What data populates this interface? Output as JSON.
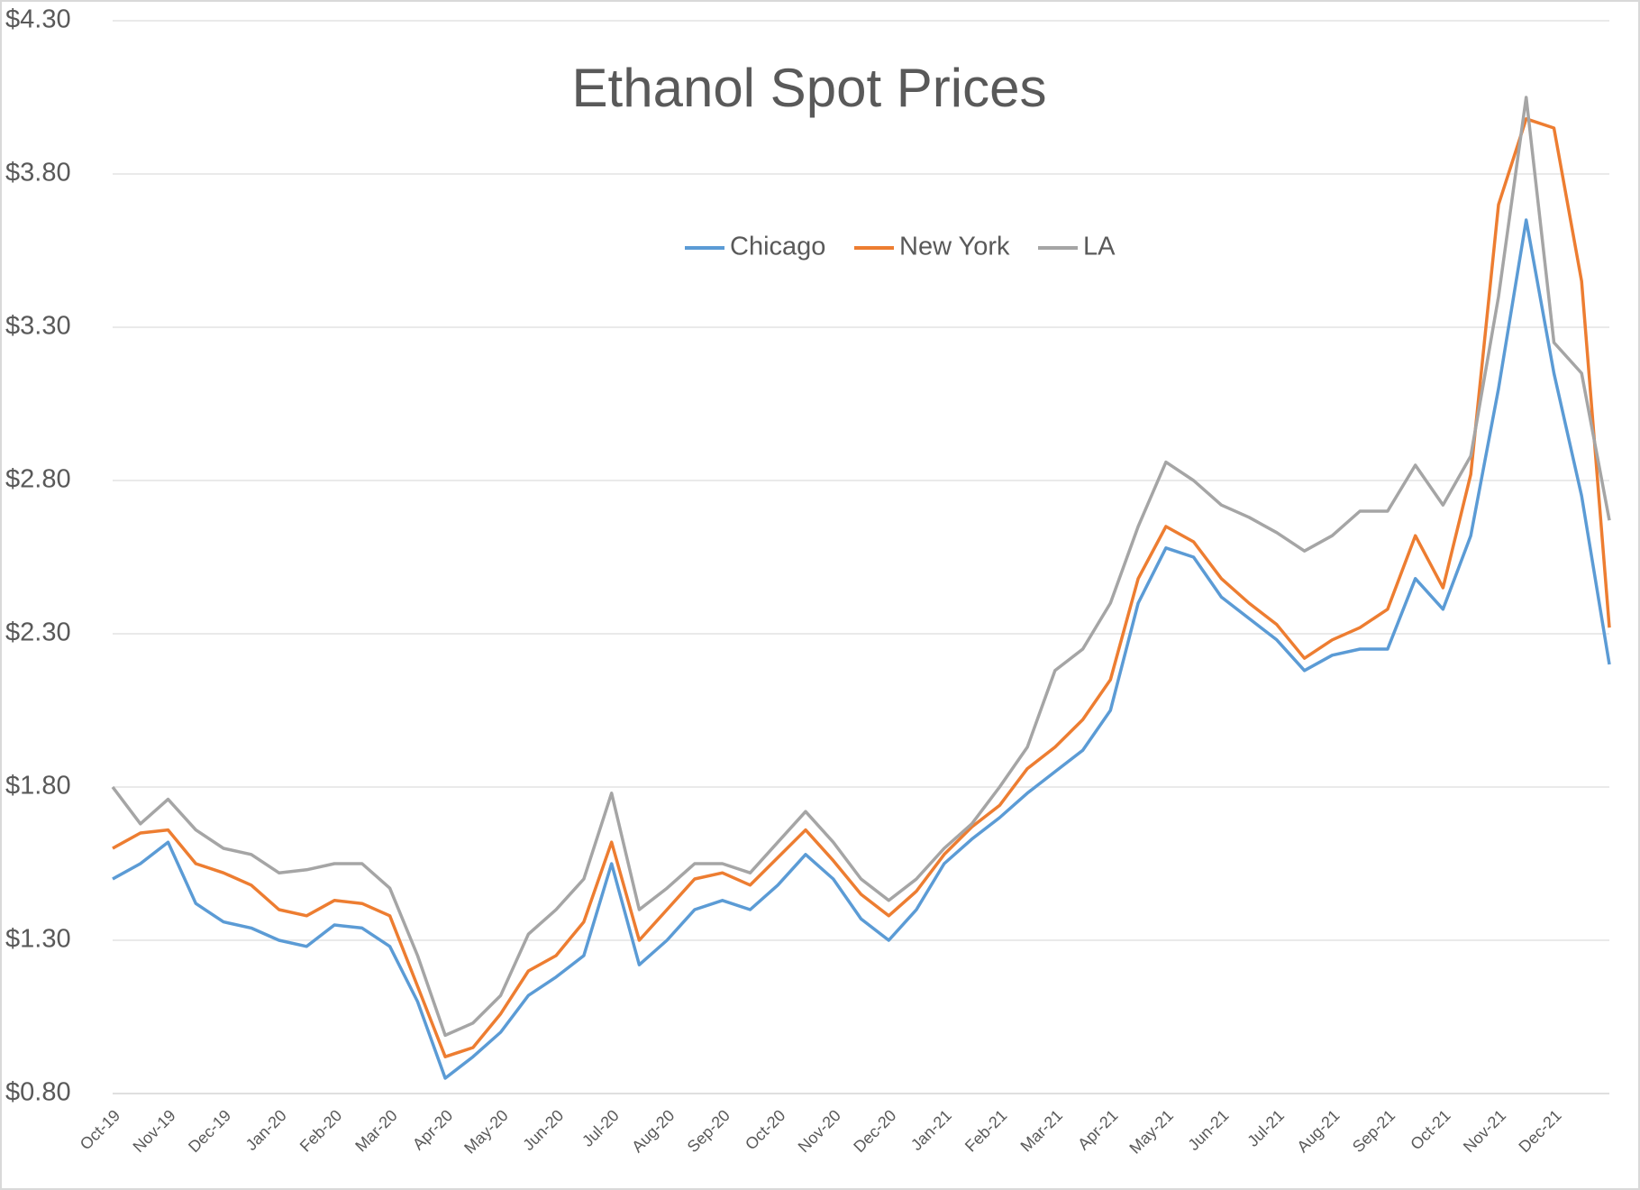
{
  "chart_data": {
    "type": "line",
    "title": "Ethanol Spot Prices",
    "categories": [
      "Oct-19",
      null,
      "Nov-19",
      null,
      "Dec-19",
      null,
      "Jan-20",
      null,
      "Feb-20",
      null,
      "Mar-20",
      null,
      "Apr-20",
      null,
      "May-20",
      null,
      "Jun-20",
      null,
      "Jul-20",
      null,
      "Aug-20",
      null,
      "Sep-20",
      null,
      "Oct-20",
      null,
      "Nov-20",
      null,
      "Dec-20",
      null,
      "Jan-21",
      null,
      "Feb-21",
      null,
      "Mar-21",
      null,
      "Apr-21",
      null,
      "May-21",
      null,
      "Jun-21",
      null,
      "Jul-21",
      null,
      "Aug-21",
      null,
      "Sep-21",
      null,
      "Oct-21",
      null,
      "Nov-21",
      null,
      "Dec-21",
      null,
      null
    ],
    "series": [
      {
        "name": "Chicago",
        "color": "#5b9bd5",
        "values": [
          1.5,
          1.55,
          1.62,
          1.42,
          1.36,
          1.34,
          1.3,
          1.28,
          1.35,
          1.34,
          1.28,
          1.1,
          0.85,
          0.92,
          1.0,
          1.12,
          1.18,
          1.25,
          1.55,
          1.22,
          1.3,
          1.4,
          1.43,
          1.4,
          1.48,
          1.58,
          1.5,
          1.37,
          1.3,
          1.4,
          1.55,
          1.63,
          1.7,
          1.78,
          1.85,
          1.92,
          2.05,
          2.4,
          2.58,
          2.55,
          2.42,
          2.35,
          2.28,
          2.18,
          2.23,
          2.25,
          2.25,
          2.48,
          2.38,
          2.62,
          3.1,
          3.65,
          3.15,
          2.75,
          2.2
        ]
      },
      {
        "name": "New York",
        "color": "#ed7d31",
        "values": [
          1.6,
          1.65,
          1.66,
          1.55,
          1.52,
          1.48,
          1.4,
          1.38,
          1.43,
          1.42,
          1.38,
          1.15,
          0.92,
          0.95,
          1.06,
          1.2,
          1.25,
          1.36,
          1.62,
          1.3,
          1.4,
          1.5,
          1.52,
          1.48,
          1.57,
          1.66,
          1.56,
          1.45,
          1.38,
          1.46,
          1.58,
          1.67,
          1.74,
          1.86,
          1.93,
          2.02,
          2.15,
          2.48,
          2.65,
          2.6,
          2.48,
          2.4,
          2.33,
          2.22,
          2.28,
          2.32,
          2.38,
          2.62,
          2.45,
          2.82,
          3.7,
          3.98,
          3.95,
          3.45,
          2.32
        ]
      },
      {
        "name": "LA",
        "color": "#a5a5a5",
        "values": [
          1.8,
          1.68,
          1.76,
          1.66,
          1.6,
          1.58,
          1.52,
          1.53,
          1.55,
          1.55,
          1.47,
          1.25,
          0.99,
          1.03,
          1.12,
          1.32,
          1.4,
          1.5,
          1.78,
          1.4,
          1.47,
          1.55,
          1.55,
          1.52,
          1.62,
          1.72,
          1.62,
          1.5,
          1.43,
          1.5,
          1.6,
          1.68,
          1.8,
          1.93,
          2.18,
          2.25,
          2.4,
          2.65,
          2.86,
          2.8,
          2.72,
          2.68,
          2.63,
          2.57,
          2.62,
          2.7,
          2.7,
          2.85,
          2.72,
          2.88,
          3.4,
          4.05,
          3.25,
          3.15,
          2.67
        ]
      }
    ],
    "ylim": [
      0.8,
      4.3
    ],
    "yticks": [
      {
        "value": 0.8,
        "label": "$0.80"
      },
      {
        "value": 1.3,
        "label": "$1.30"
      },
      {
        "value": 1.8,
        "label": "$1.80"
      },
      {
        "value": 2.3,
        "label": "$2.30"
      },
      {
        "value": 2.8,
        "label": "$2.80"
      },
      {
        "value": 3.3,
        "label": "$3.30"
      },
      {
        "value": 3.8,
        "label": "$3.80"
      },
      {
        "value": 4.3,
        "label": "$4.30"
      }
    ],
    "grid": true,
    "legend": "top"
  }
}
